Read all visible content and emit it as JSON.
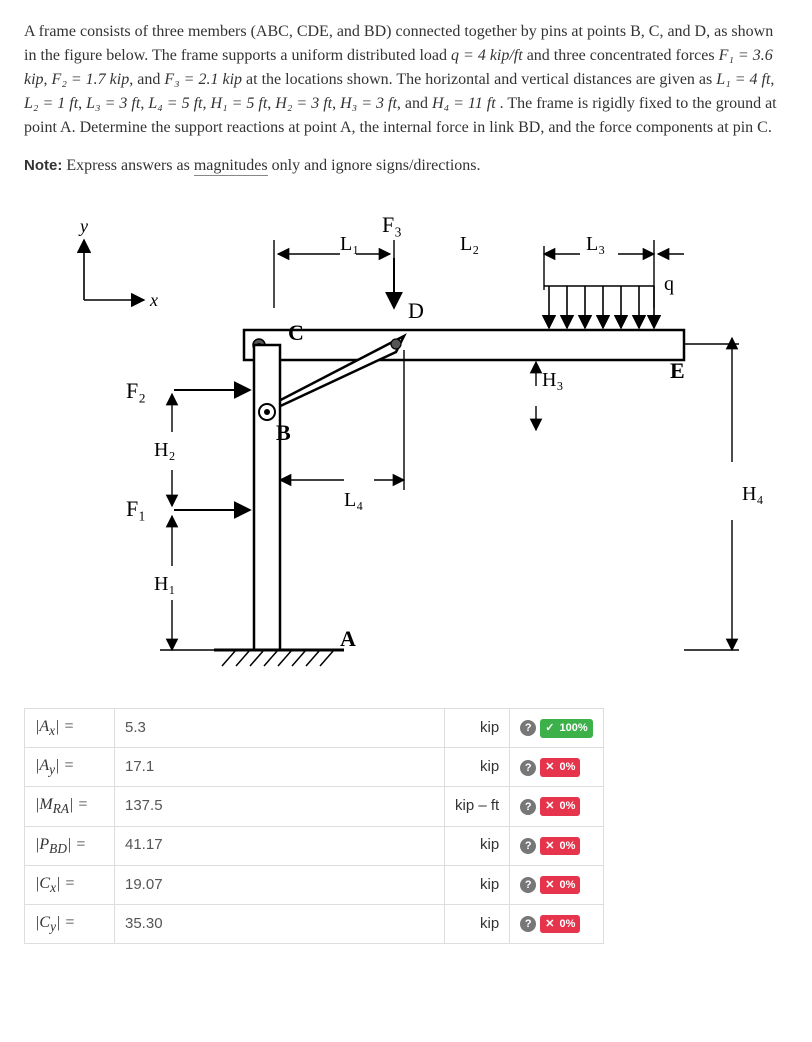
{
  "problem": {
    "intro1": "A frame consists of three members (ABC, CDE, and BD) connected together by pins at points B, C, and D, as shown in the figure below. The frame supports a uniform distributed load ",
    "q_eq": "q = 4 kip/ft",
    "intro2": " and three concentrated forces ",
    "F1_eq": "F₁ = 3.6 kip",
    "F2_eq": "F₂ = 1.7 kip",
    "F3_eq": "F₃ = 2.1 kip",
    "intro3": " at the locations shown. The horizontal and vertical distances are given as ",
    "L1_eq": "L₁ = 4 ft",
    "L2_eq": "L₂ = 1 ft",
    "L3_eq": "L₃ = 3 ft",
    "L4_eq": "L₄ = 5 ft",
    "H1_eq": "H₁ = 5 ft",
    "H2_eq": "H₂ = 3 ft",
    "H3_eq": "H₃ = 3 ft",
    "H4_eq": "H₄ = 11 ft",
    "intro4": ". The frame is rigidly fixed to the ground at point A. Determine the support reactions at point A, the internal force in link BD, and the force components at pin C.",
    "note_label": "Note:",
    "note_text_a": " Express answers as ",
    "note_under": "magnitudes",
    "note_text_b": " only and ignore signs/directions."
  },
  "figure": {
    "labels": {
      "y": "y",
      "x": "x",
      "F1": "F₁",
      "F2": "F₂",
      "F3": "F₃",
      "L1": "L₁",
      "L2": "L₂",
      "L3": "L₃",
      "L4": "L₄",
      "H1": "H₁",
      "H2": "H₂",
      "H3": "H₃",
      "H4": "H₄",
      "A": "A",
      "B": "B",
      "C": "C",
      "D": "D",
      "E": "E",
      "q": "q"
    },
    "colors": {
      "stroke": "#000000",
      "fill_member": "#ffffff",
      "pin_fill": "#555555",
      "bg": "#ffffff"
    }
  },
  "answers": [
    {
      "label_html": "|A<sub>x</sub>| =",
      "value": "5.3",
      "unit": "kip",
      "status": "ok",
      "pct": "100%"
    },
    {
      "label_html": "|A<sub>y</sub>| =",
      "value": "17.1",
      "unit": "kip",
      "status": "bad",
      "pct": "0%"
    },
    {
      "label_html": "|M<sub>RA</sub>| =",
      "value": "137.5",
      "unit": "kip – ft",
      "status": "bad",
      "pct": "0%"
    },
    {
      "label_html": "|P<sub>BD</sub>| =",
      "value": "41.17",
      "unit": "kip",
      "status": "bad",
      "pct": "0%"
    },
    {
      "label_html": "|C<sub>x</sub>| =",
      "value": "19.07",
      "unit": "kip",
      "status": "bad",
      "pct": "0%"
    },
    {
      "label_html": "|C<sub>y</sub>| =",
      "value": "35.30",
      "unit": "kip",
      "status": "bad",
      "pct": "0%"
    }
  ],
  "badge_text": {
    "ok_mark": "✓",
    "bad_mark": "✕",
    "help": "?"
  }
}
